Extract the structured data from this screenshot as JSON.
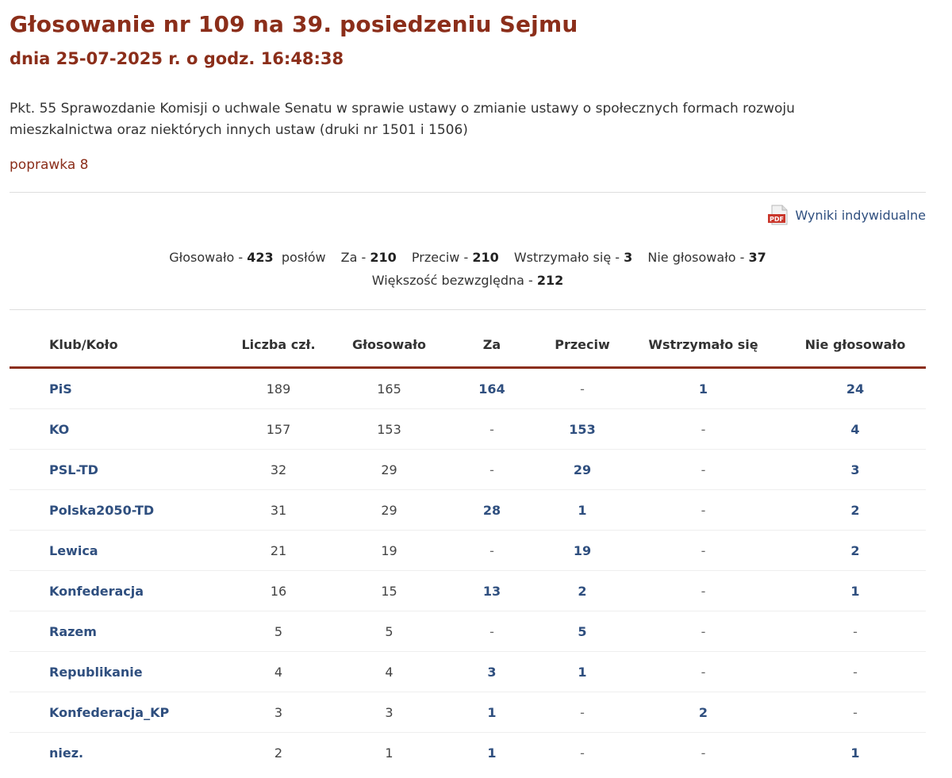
{
  "header": {
    "title": "Głosowanie nr 109 na 39. posiedzeniu Sejmu",
    "subtitle": "dnia 25-07-2025 r. o godz. 16:48:38"
  },
  "description": "Pkt. 55 Sprawozdanie Komisji o uchwale Senatu w sprawie ustawy o zmianie ustawy o społecznych formach rozwoju mieszkalnictwa oraz niektórych innych ustaw (druki nr 1501 i 1506)",
  "amendment": "poprawka 8",
  "pdf": {
    "label": "Wyniki indywidualne",
    "icon": "pdf-icon",
    "icon_text": "PDF"
  },
  "summary": {
    "voted_label": "Głosowało - ",
    "voted": "423",
    "mps_label": "posłów",
    "for_label": "Za - ",
    "for": "210",
    "against_label": "Przeciw - ",
    "against": "210",
    "abstained_label": "Wstrzymało się - ",
    "abstained": "3",
    "not_voted_label": "Nie głosowało - ",
    "not_voted": "37",
    "majority_label": "Większość bezwzględna - ",
    "majority": "212"
  },
  "table": {
    "headers": [
      "Klub/Koło",
      "Liczba czł.",
      "Głosowało",
      "Za",
      "Przeciw",
      "Wstrzymało się",
      "Nie głosowało"
    ],
    "rows": [
      {
        "club": "PiS",
        "members": "189",
        "voted": "165",
        "for": "164",
        "against": "-",
        "abstained": "1",
        "not_voted": "24"
      },
      {
        "club": "KO",
        "members": "157",
        "voted": "153",
        "for": "-",
        "against": "153",
        "abstained": "-",
        "not_voted": "4"
      },
      {
        "club": "PSL-TD",
        "members": "32",
        "voted": "29",
        "for": "-",
        "against": "29",
        "abstained": "-",
        "not_voted": "3"
      },
      {
        "club": "Polska2050-TD",
        "members": "31",
        "voted": "29",
        "for": "28",
        "against": "1",
        "abstained": "-",
        "not_voted": "2"
      },
      {
        "club": "Lewica",
        "members": "21",
        "voted": "19",
        "for": "-",
        "against": "19",
        "abstained": "-",
        "not_voted": "2"
      },
      {
        "club": "Konfederacja",
        "members": "16",
        "voted": "15",
        "for": "13",
        "against": "2",
        "abstained": "-",
        "not_voted": "1"
      },
      {
        "club": "Razem",
        "members": "5",
        "voted": "5",
        "for": "-",
        "against": "5",
        "abstained": "-",
        "not_voted": "-"
      },
      {
        "club": "Republikanie",
        "members": "4",
        "voted": "4",
        "for": "3",
        "against": "1",
        "abstained": "-",
        "not_voted": "-"
      },
      {
        "club": "Konfederacja_KP",
        "members": "3",
        "voted": "3",
        "for": "1",
        "against": "-",
        "abstained": "2",
        "not_voted": "-"
      },
      {
        "club": "niez.",
        "members": "2",
        "voted": "1",
        "for": "1",
        "against": "-",
        "abstained": "-",
        "not_voted": "1"
      }
    ]
  },
  "colors": {
    "accent": "#8b2e1a",
    "link": "#2f4f7f",
    "pdf_red": "#c9362b"
  }
}
